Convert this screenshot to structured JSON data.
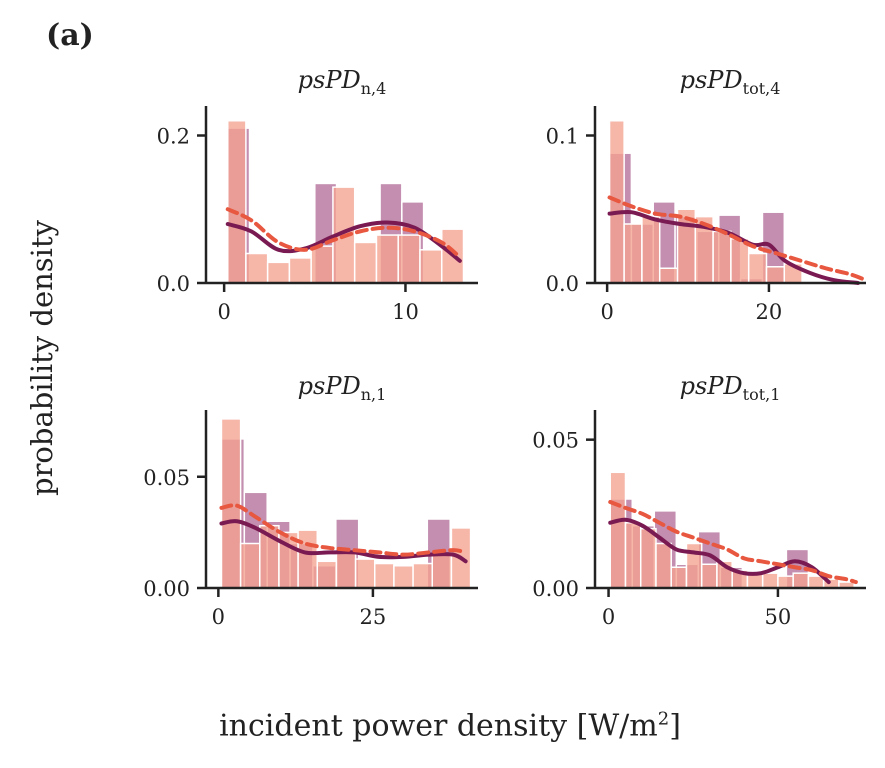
{
  "figure": {
    "panel_label": "(a)",
    "ylabel": "probability density",
    "xlabel_prefix": "incident power density [W/m",
    "xlabel_sup": "2",
    "xlabel_suffix": "]"
  },
  "colors": {
    "series_a_bar": "#b97aa1",
    "series_b_bar": "#f4a290",
    "series_a_line": "#7a1a52",
    "series_b_line": "#e8573f",
    "axis": "#222222"
  },
  "chart_data": [
    {
      "type": "bar",
      "title_main": "psPD",
      "title_sub": "n,4",
      "xlim": [
        -1,
        14
      ],
      "ylim": [
        0,
        0.24
      ],
      "xticks": [
        0,
        10
      ],
      "xtick_labels": [
        "0",
        "10"
      ],
      "yticks": [
        0,
        0.2
      ],
      "ytick_labels": [
        "0.0",
        "0.2"
      ],
      "series": [
        {
          "bins": [
            [
              0.2,
              1.4
            ],
            [
              1.4,
              2.6
            ],
            [
              2.6,
              3.8
            ],
            [
              3.8,
              5.0
            ],
            [
              5.0,
              6.2
            ],
            [
              6.2,
              7.4
            ],
            [
              7.4,
              8.6
            ],
            [
              8.6,
              9.8
            ],
            [
              9.8,
              11.0
            ],
            [
              11.0,
              12.2
            ],
            [
              12.2,
              13.4
            ]
          ],
          "values": [
            0.21,
            0.0,
            0.0,
            0.0,
            0.135,
            0.0,
            0.0,
            0.135,
            0.11,
            0.0,
            0.0
          ],
          "kde_x": [
            0.2,
            1.5,
            3,
            4.5,
            6,
            7.5,
            9,
            10.5,
            12,
            13
          ],
          "kde_y": [
            0.08,
            0.07,
            0.045,
            0.047,
            0.063,
            0.077,
            0.082,
            0.075,
            0.05,
            0.03
          ]
        },
        {
          "bins": [
            [
              0.2,
              1.2
            ],
            [
              1.2,
              2.4
            ],
            [
              2.4,
              3.6
            ],
            [
              3.6,
              4.8
            ],
            [
              4.8,
              6.0
            ],
            [
              6.0,
              7.2
            ],
            [
              7.2,
              8.4
            ],
            [
              8.4,
              9.6
            ],
            [
              9.6,
              10.8
            ],
            [
              10.8,
              12.0
            ],
            [
              12.0,
              13.2
            ]
          ],
          "values": [
            0.22,
            0.04,
            0.028,
            0.034,
            0.05,
            0.13,
            0.055,
            0.065,
            0.065,
            0.045,
            0.073
          ],
          "kde_x": [
            0.2,
            1.5,
            3,
            4.5,
            6,
            7.5,
            9,
            10.5,
            12,
            13
          ],
          "kde_y": [
            0.1,
            0.085,
            0.055,
            0.045,
            0.058,
            0.07,
            0.075,
            0.07,
            0.055,
            0.035
          ]
        }
      ]
    },
    {
      "type": "bar",
      "title_main": "psPD",
      "title_sub": "tot,4",
      "xlim": [
        -1.5,
        32
      ],
      "ylim": [
        0,
        0.12
      ],
      "xticks": [
        0,
        20
      ],
      "xtick_labels": [
        "0",
        "20"
      ],
      "yticks": [
        0,
        0.1
      ],
      "ytick_labels": [
        "0.0",
        "0.1"
      ],
      "series": [
        {
          "bins": [
            [
              0.3,
              3.0
            ],
            [
              3.0,
              5.7
            ],
            [
              5.7,
              8.4
            ],
            [
              8.4,
              11.1
            ],
            [
              11.1,
              13.8
            ],
            [
              13.8,
              16.5
            ],
            [
              16.5,
              19.2
            ],
            [
              19.2,
              21.9
            ]
          ],
          "values": [
            0.088,
            0.04,
            0.055,
            0.045,
            0.035,
            0.046,
            0.003,
            0.048
          ],
          "kde_x": [
            0.3,
            3,
            6,
            9,
            12,
            15,
            18,
            20,
            22,
            25,
            28,
            31
          ],
          "kde_y": [
            0.047,
            0.048,
            0.043,
            0.04,
            0.038,
            0.034,
            0.026,
            0.026,
            0.015,
            0.007,
            0.002,
            0.0
          ]
        },
        {
          "bins": [
            [
              0.3,
              2.1
            ],
            [
              2.1,
              4.3
            ],
            [
              4.3,
              6.5
            ],
            [
              6.5,
              8.7
            ],
            [
              8.7,
              10.9
            ],
            [
              10.9,
              13.1
            ],
            [
              13.1,
              15.3
            ],
            [
              15.3,
              17.5
            ],
            [
              17.5,
              19.7
            ],
            [
              19.7,
              21.9
            ],
            [
              21.9,
              24.1
            ]
          ],
          "values": [
            0.11,
            0.04,
            0.045,
            0.01,
            0.05,
            0.045,
            0.035,
            0.03,
            0.02,
            0.011,
            0.013
          ],
          "kde_x": [
            0.3,
            3,
            6,
            9,
            12,
            15,
            18,
            21,
            24,
            27,
            30,
            31.5
          ],
          "kde_y": [
            0.058,
            0.052,
            0.047,
            0.045,
            0.04,
            0.033,
            0.025,
            0.02,
            0.015,
            0.01,
            0.006,
            0.003
          ]
        }
      ]
    },
    {
      "type": "bar",
      "title_main": "psPD",
      "title_sub": "n,1",
      "xlim": [
        -2,
        42
      ],
      "ylim": [
        0,
        0.08
      ],
      "xticks": [
        0,
        25
      ],
      "xtick_labels": [
        "0",
        "25"
      ],
      "yticks": [
        0,
        0.05
      ],
      "ytick_labels": [
        "0.00",
        "0.05"
      ],
      "series": [
        {
          "bins": [
            [
              0.5,
              4.2
            ],
            [
              4.2,
              7.9
            ],
            [
              7.9,
              11.6
            ],
            [
              11.6,
              15.3
            ],
            [
              15.3,
              19.0
            ],
            [
              19.0,
              22.7
            ],
            [
              22.7,
              26.4
            ],
            [
              26.4,
              30.1
            ],
            [
              30.1,
              33.8
            ],
            [
              33.8,
              37.5
            ],
            [
              37.5,
              41.2
            ]
          ],
          "values": [
            0.067,
            0.043,
            0.03,
            0.02,
            0.01,
            0.031,
            0.0,
            0.0,
            0.0,
            0.031,
            0.0
          ],
          "kde_x": [
            0.5,
            3,
            6,
            10,
            14,
            18,
            22,
            26,
            30,
            34,
            38,
            40
          ],
          "kde_y": [
            0.029,
            0.03,
            0.027,
            0.021,
            0.016,
            0.016,
            0.016,
            0.014,
            0.014,
            0.015,
            0.015,
            0.012
          ]
        },
        {
          "bins": [
            [
              0.5,
              3.6
            ],
            [
              3.6,
              6.7
            ],
            [
              6.7,
              9.8
            ],
            [
              9.8,
              12.9
            ],
            [
              12.9,
              16.0
            ],
            [
              16.0,
              19.1
            ],
            [
              19.1,
              22.2
            ],
            [
              22.2,
              25.3
            ],
            [
              25.3,
              28.4
            ],
            [
              28.4,
              31.5
            ],
            [
              31.5,
              34.6
            ],
            [
              34.6,
              37.7
            ],
            [
              37.7,
              40.8
            ]
          ],
          "values": [
            0.076,
            0.02,
            0.028,
            0.025,
            0.026,
            0.012,
            0.016,
            0.013,
            0.011,
            0.01,
            0.011,
            0.015,
            0.027
          ],
          "kde_x": [
            0.5,
            3,
            6,
            10,
            14,
            18,
            22,
            26,
            30,
            34,
            38,
            40
          ],
          "kde_y": [
            0.036,
            0.037,
            0.032,
            0.025,
            0.02,
            0.018,
            0.017,
            0.016,
            0.015,
            0.016,
            0.017,
            0.016
          ]
        }
      ]
    },
    {
      "type": "bar",
      "title_main": "psPD",
      "title_sub": "tot,1",
      "xlim": [
        -4,
        76
      ],
      "ylim": [
        0,
        0.06
      ],
      "xticks": [
        0,
        50
      ],
      "xtick_labels": [
        "0",
        "50"
      ],
      "yticks": [
        0,
        0.05
      ],
      "ytick_labels": [
        "0.00",
        "0.05"
      ],
      "series": [
        {
          "bins": [
            [
              0.5,
              7.0
            ],
            [
              7.0,
              13.5
            ],
            [
              13.5,
              20.0
            ],
            [
              20.0,
              26.5
            ],
            [
              26.5,
              33.0
            ],
            [
              33.0,
              39.5
            ],
            [
              39.5,
              46.0
            ],
            [
              46.0,
              52.5
            ],
            [
              52.5,
              59.0
            ],
            [
              59.0,
              65.5
            ]
          ],
          "values": [
            0.03,
            0.021,
            0.026,
            0.008,
            0.019,
            0.007,
            0.0,
            0.0,
            0.013,
            0.0
          ],
          "kde_x": [
            0.5,
            5,
            10,
            15,
            20,
            25,
            30,
            35,
            40,
            45,
            50,
            55,
            60,
            65
          ],
          "kde_y": [
            0.022,
            0.023,
            0.021,
            0.017,
            0.013,
            0.012,
            0.011,
            0.007,
            0.005,
            0.005,
            0.007,
            0.009,
            0.007,
            0.002
          ]
        },
        {
          "bins": [
            [
              0.5,
              5.0
            ],
            [
              5.0,
              9.5
            ],
            [
              9.5,
              14.0
            ],
            [
              14.0,
              18.5
            ],
            [
              18.5,
              23.0
            ],
            [
              23.0,
              27.5
            ],
            [
              27.5,
              32.0
            ],
            [
              32.0,
              36.5
            ],
            [
              36.5,
              41.0
            ],
            [
              41.0,
              45.5
            ],
            [
              45.5,
              50.0
            ],
            [
              50.0,
              54.5
            ],
            [
              54.5,
              59.0
            ],
            [
              59.0,
              63.5
            ],
            [
              63.5,
              68.0
            ],
            [
              68.0,
              72.5
            ]
          ],
          "values": [
            0.039,
            0.022,
            0.02,
            0.015,
            0.007,
            0.015,
            0.008,
            0.009,
            0.006,
            0.005,
            0.005,
            0.004,
            0.005,
            0.004,
            0.003,
            0.002
          ],
          "kde_x": [
            0.5,
            5,
            10,
            15,
            20,
            25,
            30,
            35,
            40,
            45,
            50,
            55,
            60,
            65,
            70,
            73
          ],
          "kde_y": [
            0.029,
            0.027,
            0.025,
            0.022,
            0.019,
            0.017,
            0.015,
            0.013,
            0.01,
            0.009,
            0.008,
            0.007,
            0.006,
            0.004,
            0.003,
            0.002
          ]
        }
      ]
    }
  ]
}
